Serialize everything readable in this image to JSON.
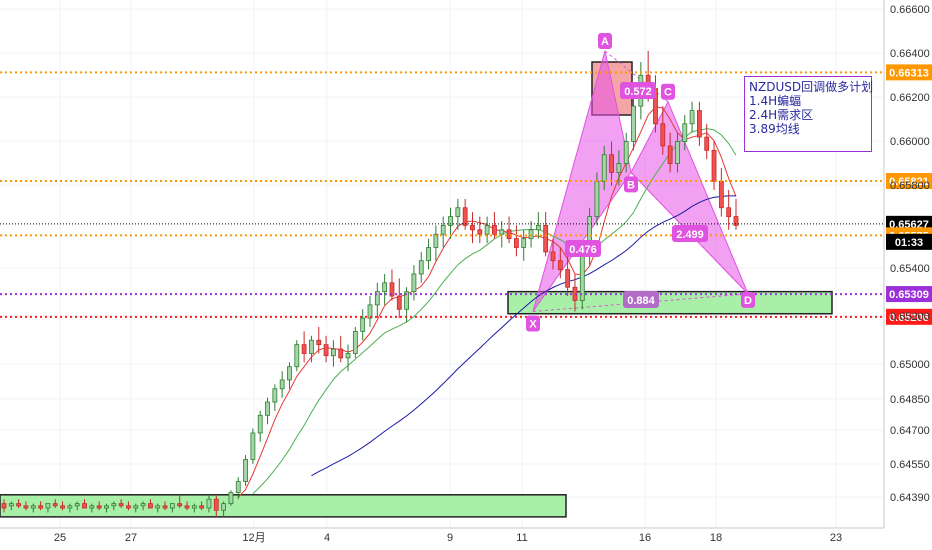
{
  "chart_data": {
    "type": "candlestick",
    "instrument_note": {
      "title": "NZDUSD回调做多计划",
      "items": [
        "1.4H蝙蝠",
        "2.4H需求区",
        "3.89均线"
      ]
    },
    "y_axis": {
      "range": [
        0.6425,
        0.667
      ],
      "ticks": [
        "0.66600",
        "0.66400",
        "0.66200",
        "0.66000",
        "0.65800",
        "0.65400",
        "0.65200",
        "0.65000",
        "0.64850",
        "0.64700",
        "0.64550",
        "0.64390"
      ]
    },
    "x_axis": {
      "ticks": [
        "25",
        "27",
        "12月",
        "4",
        "9",
        "11",
        "16",
        "18",
        "23"
      ]
    },
    "price_lines": [
      {
        "value": 0.66313,
        "label": "0.66313",
        "color": "#ff9800",
        "style": "dotted"
      },
      {
        "value": 0.65821,
        "label": "0.65821",
        "color": "#ff9800",
        "style": "dotted"
      },
      {
        "value": 0.65627,
        "label": "0.65627",
        "color": "#000000",
        "style": "dotted"
      },
      {
        "value": 0.65575,
        "label": "0.65575",
        "color": "#ff9800",
        "style": "dotted"
      },
      {
        "value": 0.65309,
        "label": "0.65309",
        "color": "#9b30d9",
        "style": "dotted"
      },
      {
        "value": 0.65206,
        "label": "0.65206",
        "color": "#ff1a1a",
        "style": "dotted"
      }
    ],
    "current_price": {
      "value": 0.65627,
      "countdown": "01:33"
    },
    "pattern_points": [
      {
        "label": "X",
        "value": 0.6523
      },
      {
        "label": "A",
        "value": 0.6641
      },
      {
        "label": "B",
        "value": 0.6586
      },
      {
        "label": "C",
        "value": 0.6618
      },
      {
        "label": "D",
        "value": 0.6531
      }
    ],
    "ratios": [
      "0.572",
      "0.476",
      "2.499",
      "0.884"
    ],
    "zones": [
      {
        "name": "supply",
        "top": 0.6636,
        "bottom": 0.6612,
        "color": "#f4a6a6"
      },
      {
        "name": "demand",
        "top": 0.6532,
        "bottom": 0.6522,
        "color": "#a8f0a8"
      },
      {
        "name": "old-demand",
        "top": 0.644,
        "bottom": 0.643,
        "color": "#a8f0a8"
      }
    ],
    "candles": [
      [
        0.6436,
        0.6438,
        0.6432,
        0.6434
      ],
      [
        0.6435,
        0.6437,
        0.6433,
        0.6436
      ],
      [
        0.6436,
        0.6438,
        0.6434,
        0.6435
      ],
      [
        0.6435,
        0.6437,
        0.6433,
        0.6434
      ],
      [
        0.6434,
        0.6436,
        0.6432,
        0.6435
      ],
      [
        0.6435,
        0.6437,
        0.6433,
        0.6434
      ],
      [
        0.6434,
        0.6436,
        0.6432,
        0.6436
      ],
      [
        0.6436,
        0.6438,
        0.6434,
        0.6435
      ],
      [
        0.6435,
        0.6437,
        0.6433,
        0.6434
      ],
      [
        0.6434,
        0.6436,
        0.6432,
        0.6435
      ],
      [
        0.6435,
        0.6437,
        0.6433,
        0.6436
      ],
      [
        0.6436,
        0.6438,
        0.6434,
        0.6434
      ],
      [
        0.6434,
        0.6436,
        0.6432,
        0.6435
      ],
      [
        0.6435,
        0.6437,
        0.6433,
        0.6434
      ],
      [
        0.6434,
        0.6436,
        0.6432,
        0.6435
      ],
      [
        0.6435,
        0.6437,
        0.6433,
        0.6436
      ],
      [
        0.6436,
        0.6438,
        0.6434,
        0.6435
      ],
      [
        0.6435,
        0.6437,
        0.6433,
        0.6434
      ],
      [
        0.6434,
        0.6436,
        0.6432,
        0.6435
      ],
      [
        0.6435,
        0.6437,
        0.6433,
        0.6436
      ],
      [
        0.6436,
        0.6438,
        0.6434,
        0.6434
      ],
      [
        0.6434,
        0.6436,
        0.6432,
        0.6435
      ],
      [
        0.6435,
        0.6437,
        0.6433,
        0.6434
      ],
      [
        0.6434,
        0.6436,
        0.6432,
        0.6436
      ],
      [
        0.6436,
        0.644,
        0.6434,
        0.6435
      ],
      [
        0.6435,
        0.6437,
        0.6433,
        0.6434
      ],
      [
        0.6434,
        0.6436,
        0.6432,
        0.6435
      ],
      [
        0.6435,
        0.6437,
        0.6433,
        0.6434
      ],
      [
        0.6434,
        0.644,
        0.6432,
        0.6438
      ],
      [
        0.6438,
        0.644,
        0.643,
        0.6433
      ],
      [
        0.6433,
        0.6437,
        0.643,
        0.6436
      ],
      [
        0.6436,
        0.6442,
        0.6435,
        0.6441
      ],
      [
        0.6441,
        0.6448,
        0.6438,
        0.6446
      ],
      [
        0.6446,
        0.6458,
        0.6444,
        0.6456
      ],
      [
        0.6456,
        0.647,
        0.6454,
        0.6468
      ],
      [
        0.6468,
        0.6478,
        0.6464,
        0.6476
      ],
      [
        0.6476,
        0.6484,
        0.6472,
        0.6482
      ],
      [
        0.6482,
        0.649,
        0.6478,
        0.6488
      ],
      [
        0.6488,
        0.6496,
        0.6484,
        0.6492
      ],
      [
        0.6492,
        0.65,
        0.6488,
        0.6498
      ],
      [
        0.6498,
        0.651,
        0.6496,
        0.6508
      ],
      [
        0.6508,
        0.6514,
        0.65,
        0.6504
      ],
      [
        0.6504,
        0.6512,
        0.65,
        0.651
      ],
      [
        0.651,
        0.6516,
        0.6504,
        0.6508
      ],
      [
        0.6508,
        0.6512,
        0.65,
        0.6503
      ],
      [
        0.6503,
        0.651,
        0.6498,
        0.6506
      ],
      [
        0.6506,
        0.6512,
        0.65,
        0.6502
      ],
      [
        0.6502,
        0.6508,
        0.6496,
        0.6504
      ],
      [
        0.6504,
        0.6516,
        0.6502,
        0.6514
      ],
      [
        0.6514,
        0.6524,
        0.651,
        0.652
      ],
      [
        0.652,
        0.653,
        0.6516,
        0.6526
      ],
      [
        0.6526,
        0.6536,
        0.652,
        0.6532
      ],
      [
        0.6532,
        0.654,
        0.6526,
        0.6536
      ],
      [
        0.6536,
        0.6542,
        0.6528,
        0.653
      ],
      [
        0.653,
        0.6538,
        0.652,
        0.6524
      ],
      [
        0.6524,
        0.6534,
        0.6518,
        0.6532
      ],
      [
        0.6532,
        0.6544,
        0.6528,
        0.654
      ],
      [
        0.654,
        0.655,
        0.6536,
        0.6546
      ],
      [
        0.6546,
        0.6556,
        0.6542,
        0.6552
      ],
      [
        0.6552,
        0.6562,
        0.6546,
        0.6558
      ],
      [
        0.6558,
        0.6566,
        0.6552,
        0.6562
      ],
      [
        0.6562,
        0.657,
        0.6556,
        0.6566
      ],
      [
        0.6566,
        0.6574,
        0.656,
        0.657
      ],
      [
        0.657,
        0.6574,
        0.656,
        0.6562
      ],
      [
        0.6562,
        0.6568,
        0.6554,
        0.656
      ],
      [
        0.656,
        0.6566,
        0.6554,
        0.6558
      ],
      [
        0.6558,
        0.6566,
        0.6554,
        0.6562
      ],
      [
        0.6562,
        0.6568,
        0.6556,
        0.6558
      ],
      [
        0.6558,
        0.6564,
        0.6552,
        0.656
      ],
      [
        0.656,
        0.6566,
        0.6554,
        0.6556
      ],
      [
        0.6556,
        0.6562,
        0.6548,
        0.6552
      ],
      [
        0.6552,
        0.656,
        0.6546,
        0.6556
      ],
      [
        0.6556,
        0.6564,
        0.6552,
        0.656
      ],
      [
        0.656,
        0.6568,
        0.6556,
        0.6562
      ],
      [
        0.6562,
        0.6568,
        0.6548,
        0.655
      ],
      [
        0.655,
        0.6556,
        0.6542,
        0.6546
      ],
      [
        0.6546,
        0.6552,
        0.6538,
        0.6542
      ],
      [
        0.6542,
        0.6548,
        0.653,
        0.6534
      ],
      [
        0.6534,
        0.654,
        0.6523,
        0.6528
      ],
      [
        0.6528,
        0.6552,
        0.6524,
        0.6548
      ],
      [
        0.6548,
        0.657,
        0.6544,
        0.6566
      ],
      [
        0.6566,
        0.6586,
        0.6562,
        0.6582
      ],
      [
        0.6582,
        0.6598,
        0.6578,
        0.6594
      ],
      [
        0.6594,
        0.66,
        0.658,
        0.6586
      ],
      [
        0.6586,
        0.6596,
        0.658,
        0.659
      ],
      [
        0.659,
        0.6604,
        0.6586,
        0.66
      ],
      [
        0.66,
        0.662,
        0.6596,
        0.6616
      ],
      [
        0.6616,
        0.6636,
        0.661,
        0.663
      ],
      [
        0.663,
        0.6641,
        0.6618,
        0.6624
      ],
      [
        0.6624,
        0.663,
        0.6604,
        0.6608
      ],
      [
        0.6608,
        0.6616,
        0.6594,
        0.6598
      ],
      [
        0.6598,
        0.6604,
        0.6586,
        0.659
      ],
      [
        0.659,
        0.6604,
        0.6586,
        0.66
      ],
      [
        0.66,
        0.6612,
        0.6596,
        0.6608
      ],
      [
        0.6608,
        0.6618,
        0.6604,
        0.6614
      ],
      [
        0.6614,
        0.6618,
        0.6598,
        0.6602
      ],
      [
        0.6602,
        0.6608,
        0.6592,
        0.6596
      ],
      [
        0.6596,
        0.66,
        0.6578,
        0.6582
      ],
      [
        0.6582,
        0.6588,
        0.6566,
        0.657
      ],
      [
        0.657,
        0.6578,
        0.656,
        0.6566
      ],
      [
        0.6566,
        0.6574,
        0.656,
        0.6562
      ]
    ],
    "moving_averages": [
      {
        "name": "red",
        "color": "#e53935"
      },
      {
        "name": "green",
        "color": "#4caf50"
      },
      {
        "name": "blue",
        "color": "#1a1aa6"
      }
    ]
  }
}
